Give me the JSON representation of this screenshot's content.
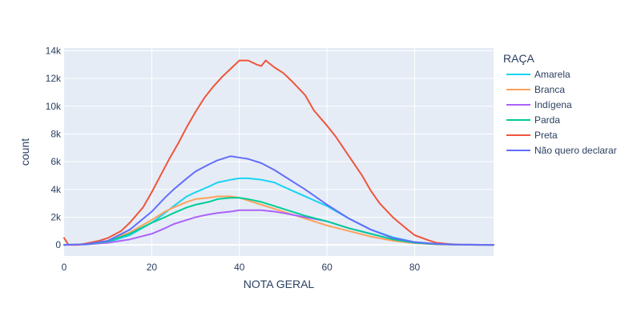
{
  "chart_data": {
    "type": "line",
    "xlabel": "NOTA GERAL",
    "ylabel": "count",
    "xlim": [
      0,
      98
    ],
    "ylim": [
      -800,
      14200
    ],
    "x_ticks": [
      0,
      20,
      40,
      60,
      80
    ],
    "y_ticks": [
      0,
      2000,
      4000,
      6000,
      8000,
      10000,
      12000,
      14000
    ],
    "x_tick_labels": [
      "0",
      "20",
      "40",
      "60",
      "80"
    ],
    "y_tick_labels": [
      "0",
      "2k",
      "4k",
      "6k",
      "8k",
      "10k",
      "12k",
      "14k"
    ],
    "grid": true,
    "legend_title": "RAÇA",
    "legend_position": "right",
    "series": [
      {
        "name": "Amarela",
        "color": "#19d3f3",
        "x": [
          0,
          5,
          10,
          15,
          20,
          23,
          25,
          28,
          30,
          33,
          35,
          38,
          40,
          42,
          45,
          48,
          50,
          55,
          60,
          65,
          70,
          75,
          80,
          85,
          90,
          95,
          98
        ],
        "y": [
          0,
          50,
          200,
          700,
          1600,
          2300,
          2800,
          3500,
          3800,
          4200,
          4500,
          4700,
          4800,
          4800,
          4700,
          4500,
          4200,
          3500,
          2800,
          1900,
          1100,
          550,
          200,
          70,
          20,
          5,
          0
        ]
      },
      {
        "name": "Branca",
        "color": "#ffa15a",
        "x": [
          0,
          5,
          10,
          15,
          20,
          23,
          25,
          28,
          30,
          33,
          35,
          38,
          40,
          42,
          45,
          48,
          50,
          55,
          60,
          65,
          70,
          75,
          80,
          85,
          90,
          95,
          98
        ],
        "y": [
          0,
          50,
          300,
          900,
          1800,
          2400,
          2700,
          3100,
          3300,
          3400,
          3500,
          3500,
          3400,
          3200,
          2900,
          2600,
          2400,
          1900,
          1400,
          1000,
          600,
          300,
          120,
          40,
          10,
          2,
          0
        ]
      },
      {
        "name": "Indígena",
        "color": "#ab63fa",
        "x": [
          0,
          5,
          10,
          15,
          20,
          23,
          25,
          28,
          30,
          33,
          35,
          38,
          40,
          42,
          45,
          48,
          50,
          55,
          60,
          65,
          70,
          75,
          80,
          85,
          90,
          95,
          98
        ],
        "y": [
          0,
          30,
          150,
          400,
          800,
          1200,
          1500,
          1800,
          2000,
          2200,
          2300,
          2400,
          2500,
          2500,
          2500,
          2400,
          2300,
          2000,
          1700,
          1200,
          800,
          400,
          150,
          50,
          15,
          3,
          0
        ]
      },
      {
        "name": "Parda",
        "color": "#00cc96",
        "x": [
          0,
          5,
          10,
          15,
          20,
          23,
          25,
          28,
          30,
          33,
          35,
          38,
          40,
          42,
          45,
          48,
          50,
          55,
          60,
          65,
          70,
          75,
          80,
          85,
          90,
          95,
          98
        ],
        "y": [
          0,
          40,
          250,
          800,
          1600,
          2000,
          2300,
          2700,
          2900,
          3100,
          3300,
          3400,
          3400,
          3300,
          3100,
          2800,
          2600,
          2100,
          1700,
          1200,
          800,
          400,
          150,
          50,
          15,
          3,
          0
        ]
      },
      {
        "name": "Preta",
        "color": "#ef553b",
        "x": [
          0,
          1,
          3,
          5,
          8,
          10,
          13,
          15,
          18,
          20,
          22,
          24,
          26,
          28,
          30,
          32,
          34,
          36,
          38,
          40,
          42,
          44,
          45,
          46,
          48,
          50,
          52,
          55,
          57,
          60,
          62,
          65,
          68,
          70,
          72,
          75,
          78,
          80,
          83,
          85,
          88,
          90,
          95,
          98
        ],
        "y": [
          500,
          0,
          0,
          100,
          300,
          500,
          1000,
          1600,
          2700,
          3800,
          5000,
          6200,
          7300,
          8500,
          9600,
          10600,
          11400,
          12100,
          12700,
          13300,
          13300,
          13000,
          12900,
          13300,
          12800,
          12400,
          11800,
          10800,
          9700,
          8600,
          7800,
          6400,
          5000,
          3900,
          3000,
          2000,
          1200,
          700,
          350,
          150,
          60,
          20,
          5,
          0
        ]
      },
      {
        "name": "Não quero declarar",
        "color": "#636efa",
        "x": [
          0,
          5,
          10,
          15,
          20,
          23,
          25,
          28,
          30,
          33,
          35,
          38,
          40,
          42,
          45,
          48,
          50,
          55,
          60,
          65,
          70,
          75,
          80,
          85,
          90,
          95,
          98
        ],
        "y": [
          0,
          50,
          300,
          1100,
          2400,
          3400,
          4000,
          4800,
          5300,
          5800,
          6100,
          6400,
          6300,
          6200,
          5900,
          5400,
          5000,
          4000,
          2900,
          1900,
          1100,
          500,
          200,
          70,
          20,
          5,
          0
        ]
      }
    ]
  }
}
